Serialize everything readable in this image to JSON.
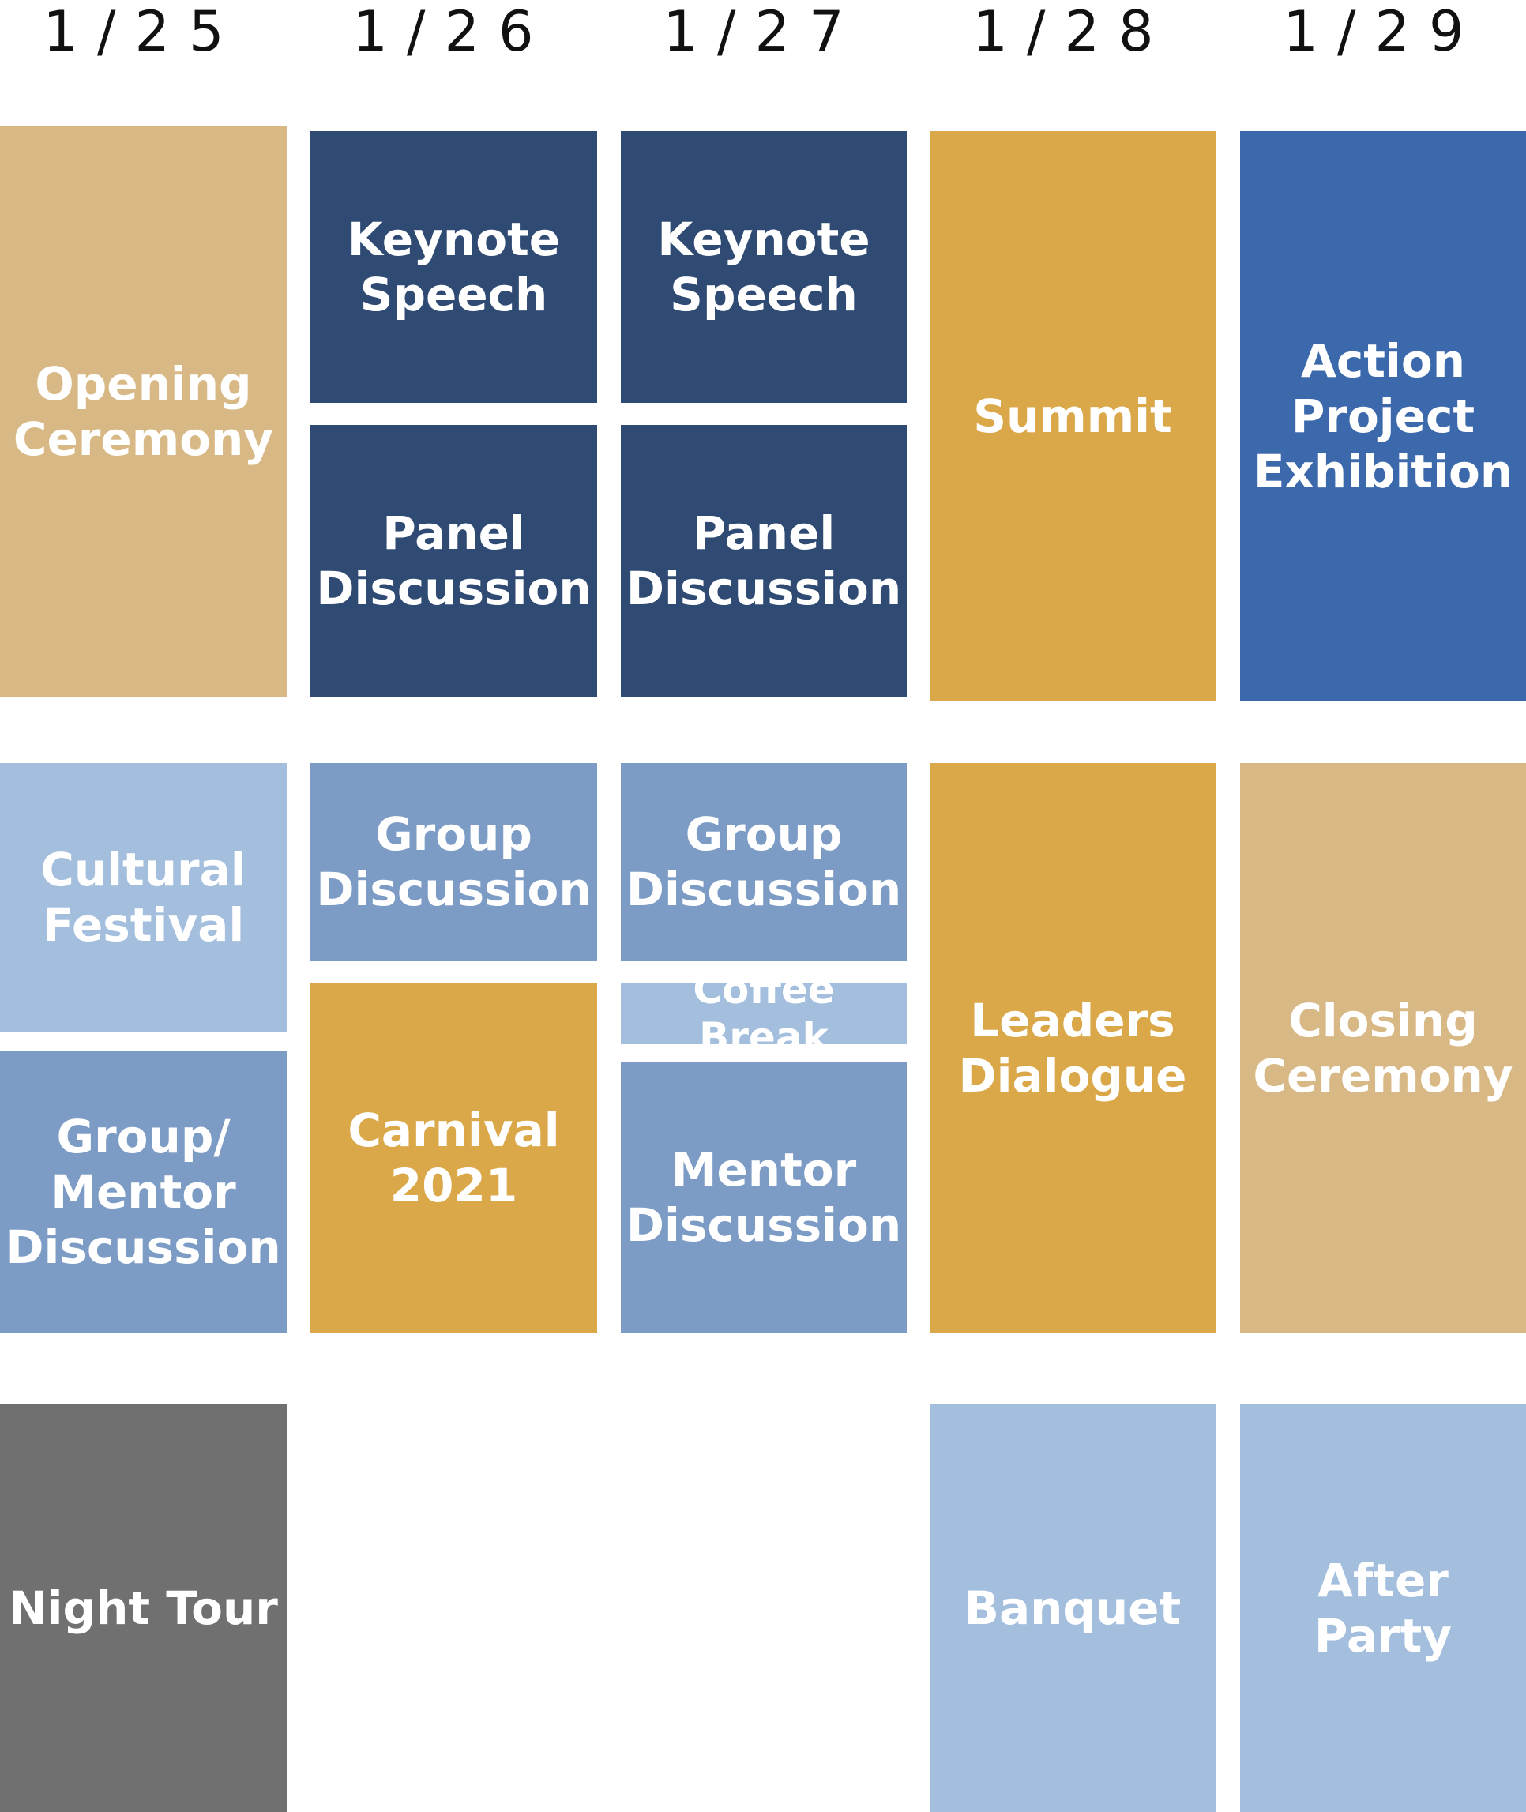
{
  "days": [
    "1/25",
    "1/26",
    "1/27",
    "1/28",
    "1/29"
  ],
  "colors": {
    "tan": "#D8B985",
    "gold": "#DBA849",
    "navy": "#2F4A73",
    "royal_blue": "#3B69AC",
    "steel_blue": "#7C9BC5",
    "light_blue": "#A3BFDD",
    "gray": "#707070"
  },
  "events": {
    "opening_ceremony": "Opening\nCeremony",
    "keynote_speech_26": "Keynote\nSpeech",
    "keynote_speech_27": "Keynote\nSpeech",
    "summit": "Summit",
    "action_project_exhibition": "Action\nProject\nExhibition",
    "panel_discussion_26": "Panel\nDiscussion",
    "panel_discussion_27": "Panel\nDiscussion",
    "cultural_festival": "Cultural\nFestival",
    "group_discussion_26": "Group\nDiscussion",
    "group_discussion_27": "Group\nDiscussion",
    "leaders_dialogue": "Leaders\nDialogue",
    "closing_ceremony": "Closing\nCeremony",
    "coffee_break": "Coffee Break",
    "group_mentor_discussion": "Group/\nMentor\nDiscussion",
    "carnival_2021": "Carnival\n2021",
    "mentor_discussion": "Mentor\nDiscussion",
    "night_tour": "Night Tour",
    "banquet": "Banquet",
    "after_party": "After Party"
  }
}
